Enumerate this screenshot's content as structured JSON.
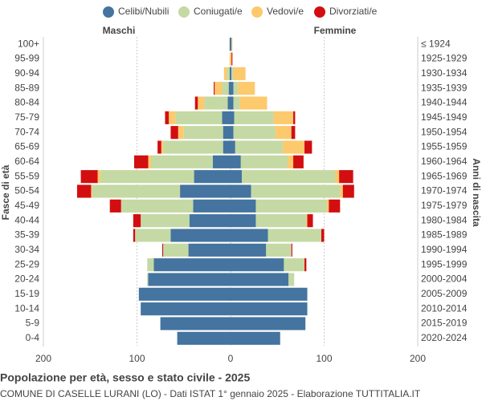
{
  "chart_data": {
    "type": "pyramid",
    "title": "Popolazione per età, sesso e stato civile - 2025",
    "subtitle": "COMUNE DI CASELLE LURANI (LO) - Dati ISTAT 1° gennaio 2025 - Elaborazione TUTTITALIA.IT",
    "left_label": "Maschi",
    "right_label": "Femmine",
    "y_label": "Fasce di età",
    "y2_label": "Anni di nascita",
    "categories": [
      "100+",
      "95-99",
      "90-94",
      "85-89",
      "80-84",
      "75-79",
      "70-74",
      "65-69",
      "60-64",
      "55-59",
      "50-54",
      "45-49",
      "40-44",
      "35-39",
      "30-34",
      "25-29",
      "20-24",
      "15-19",
      "10-14",
      "5-9",
      "0-4"
    ],
    "birth_years": [
      "≤ 1924",
      "1925-1929",
      "1930-1934",
      "1935-1939",
      "1940-1944",
      "1945-1949",
      "1950-1954",
      "1955-1959",
      "1960-1964",
      "1965-1969",
      "1970-1974",
      "1975-1979",
      "1980-1984",
      "1985-1989",
      "1990-1994",
      "1995-1999",
      "2000-2004",
      "2005-2009",
      "2010-2014",
      "2015-2019",
      "2020-2024"
    ],
    "xlim": [
      -200,
      200
    ],
    "xticks": [
      {
        "value": -200,
        "label": "200"
      },
      {
        "value": -100,
        "label": "100"
      },
      0,
      100,
      200
    ],
    "grid": true,
    "series": [
      {
        "name": "Celibi/Nubili",
        "color": "#44749f",
        "males": [
          1,
          0,
          1,
          2,
          3,
          9,
          8,
          8,
          19,
          39,
          54,
          40,
          44,
          64,
          45,
          82,
          88,
          98,
          96,
          75,
          57
        ],
        "females": [
          1,
          0,
          1,
          3,
          3,
          4,
          3,
          5,
          11,
          12,
          22,
          27,
          27,
          40,
          38,
          57,
          62,
          82,
          82,
          80,
          53
        ]
      },
      {
        "name": "Coniugati/e",
        "color": "#c5d9a4",
        "males": [
          0,
          0,
          3,
          7,
          25,
          50,
          42,
          64,
          66,
          100,
          94,
          77,
          52,
          38,
          27,
          7,
          1,
          0,
          0,
          0,
          0
        ],
        "females": [
          0,
          0,
          2,
          5,
          7,
          42,
          45,
          51,
          50,
          100,
          95,
          76,
          54,
          57,
          27,
          22,
          6,
          0,
          0,
          0,
          0
        ]
      },
      {
        "name": "Vedovi/e",
        "color": "#fcc96c",
        "males": [
          0,
          1,
          3,
          8,
          7,
          7,
          6,
          2,
          3,
          3,
          1,
          0,
          0,
          0,
          0,
          0,
          0,
          0,
          0,
          0,
          0
        ],
        "females": [
          1,
          1,
          13,
          18,
          29,
          21,
          17,
          23,
          6,
          4,
          3,
          2,
          1,
          0,
          0,
          0,
          0,
          0,
          0,
          0,
          0
        ]
      },
      {
        "name": "Divorziati/e",
        "color": "#d20e10",
        "males": [
          0,
          0,
          0,
          1,
          3,
          4,
          8,
          4,
          15,
          18,
          15,
          12,
          8,
          2,
          1,
          0,
          0,
          0,
          0,
          0,
          0
        ],
        "females": [
          0,
          1,
          0,
          0,
          0,
          2,
          4,
          8,
          11,
          15,
          12,
          12,
          6,
          3,
          1,
          2,
          0,
          0,
          0,
          0,
          0
        ]
      }
    ]
  }
}
